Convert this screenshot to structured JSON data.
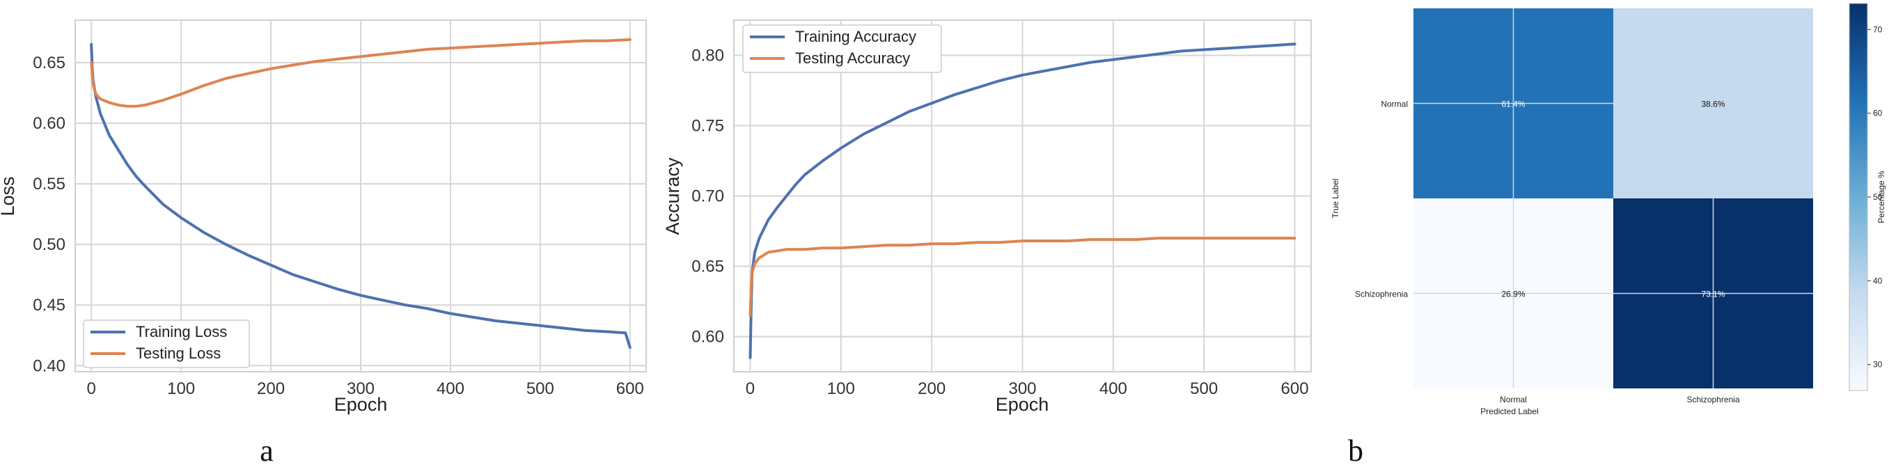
{
  "chart_data": [
    {
      "type": "line",
      "xlabel": "Epoch",
      "ylabel": "Loss",
      "xlim": [
        -18,
        618
      ],
      "ylim": [
        0.395,
        0.685
      ],
      "xticks": [
        0,
        100,
        200,
        300,
        400,
        500,
        600
      ],
      "yticks": [
        0.4,
        0.45,
        0.5,
        0.55,
        0.6,
        0.65
      ],
      "grid": true,
      "legend_position": "lower-left",
      "series": [
        {
          "name": "Training Loss",
          "color": "#4c72b0",
          "x": [
            0,
            1,
            2,
            5,
            10,
            20,
            30,
            40,
            50,
            60,
            80,
            100,
            125,
            150,
            175,
            200,
            225,
            250,
            275,
            300,
            325,
            350,
            375,
            400,
            425,
            450,
            475,
            500,
            525,
            550,
            575,
            595,
            600
          ],
          "y": [
            0.665,
            0.645,
            0.635,
            0.622,
            0.608,
            0.59,
            0.578,
            0.566,
            0.556,
            0.548,
            0.533,
            0.522,
            0.51,
            0.5,
            0.491,
            0.483,
            0.475,
            0.469,
            0.463,
            0.458,
            0.454,
            0.45,
            0.447,
            0.443,
            0.44,
            0.437,
            0.435,
            0.433,
            0.431,
            0.429,
            0.428,
            0.427,
            0.415
          ]
        },
        {
          "name": "Testing Loss",
          "color": "#dd8452",
          "x": [
            0,
            1,
            2,
            5,
            10,
            20,
            30,
            40,
            50,
            60,
            80,
            100,
            125,
            150,
            175,
            200,
            225,
            250,
            275,
            300,
            325,
            350,
            375,
            400,
            425,
            450,
            475,
            500,
            525,
            550,
            575,
            600
          ],
          "y": [
            0.65,
            0.64,
            0.632,
            0.624,
            0.62,
            0.617,
            0.615,
            0.614,
            0.614,
            0.615,
            0.619,
            0.624,
            0.631,
            0.637,
            0.641,
            0.645,
            0.648,
            0.651,
            0.653,
            0.655,
            0.657,
            0.659,
            0.661,
            0.662,
            0.663,
            0.664,
            0.665,
            0.666,
            0.667,
            0.668,
            0.668,
            0.669
          ]
        }
      ]
    },
    {
      "type": "line",
      "xlabel": "Epoch",
      "ylabel": "Accuracy",
      "xlim": [
        -18,
        618
      ],
      "ylim": [
        0.575,
        0.825
      ],
      "xticks": [
        0,
        100,
        200,
        300,
        400,
        500,
        600
      ],
      "yticks": [
        0.6,
        0.65,
        0.7,
        0.75,
        0.8
      ],
      "grid": true,
      "legend_position": "upper-left",
      "series": [
        {
          "name": "Training Accuracy",
          "color": "#4c72b0",
          "x": [
            0,
            1,
            2,
            5,
            10,
            20,
            30,
            40,
            50,
            60,
            80,
            100,
            125,
            150,
            175,
            200,
            225,
            250,
            275,
            300,
            325,
            350,
            375,
            400,
            425,
            450,
            475,
            500,
            525,
            550,
            575,
            600
          ],
          "y": [
            0.585,
            0.62,
            0.645,
            0.66,
            0.67,
            0.683,
            0.692,
            0.7,
            0.708,
            0.715,
            0.725,
            0.734,
            0.744,
            0.752,
            0.76,
            0.766,
            0.772,
            0.777,
            0.782,
            0.786,
            0.789,
            0.792,
            0.795,
            0.797,
            0.799,
            0.801,
            0.803,
            0.804,
            0.805,
            0.806,
            0.807,
            0.808
          ]
        },
        {
          "name": "Testing Accuracy",
          "color": "#dd8452",
          "x": [
            0,
            1,
            2,
            5,
            10,
            20,
            30,
            40,
            50,
            60,
            80,
            100,
            125,
            150,
            175,
            200,
            225,
            250,
            275,
            300,
            325,
            350,
            375,
            400,
            425,
            450,
            475,
            500,
            525,
            550,
            575,
            600
          ],
          "y": [
            0.615,
            0.635,
            0.645,
            0.652,
            0.656,
            0.66,
            0.661,
            0.662,
            0.662,
            0.662,
            0.663,
            0.663,
            0.664,
            0.665,
            0.665,
            0.666,
            0.666,
            0.667,
            0.667,
            0.668,
            0.668,
            0.668,
            0.669,
            0.669,
            0.669,
            0.67,
            0.67,
            0.67,
            0.67,
            0.67,
            0.67,
            0.67
          ]
        }
      ]
    },
    {
      "type": "heatmap",
      "xlabel": "Predicted Label",
      "ylabel": "True Label",
      "x_categories": [
        "Normal",
        "Schizophrenia"
      ],
      "y_categories": [
        "Normal",
        "Schizophrenia"
      ],
      "values": [
        [
          61.4,
          38.6
        ],
        [
          26.9,
          73.1
        ]
      ],
      "cell_labels": [
        [
          "61.4%",
          "38.6%"
        ],
        [
          "26.9%",
          "73.1%"
        ]
      ],
      "colormap": "Blues",
      "colorbar": {
        "label": "Percentage %",
        "range": [
          26.9,
          73.1
        ],
        "ticks": [
          30,
          40,
          50,
          60,
          70
        ]
      }
    }
  ],
  "panel_labels": {
    "a": "a",
    "b": "b"
  }
}
